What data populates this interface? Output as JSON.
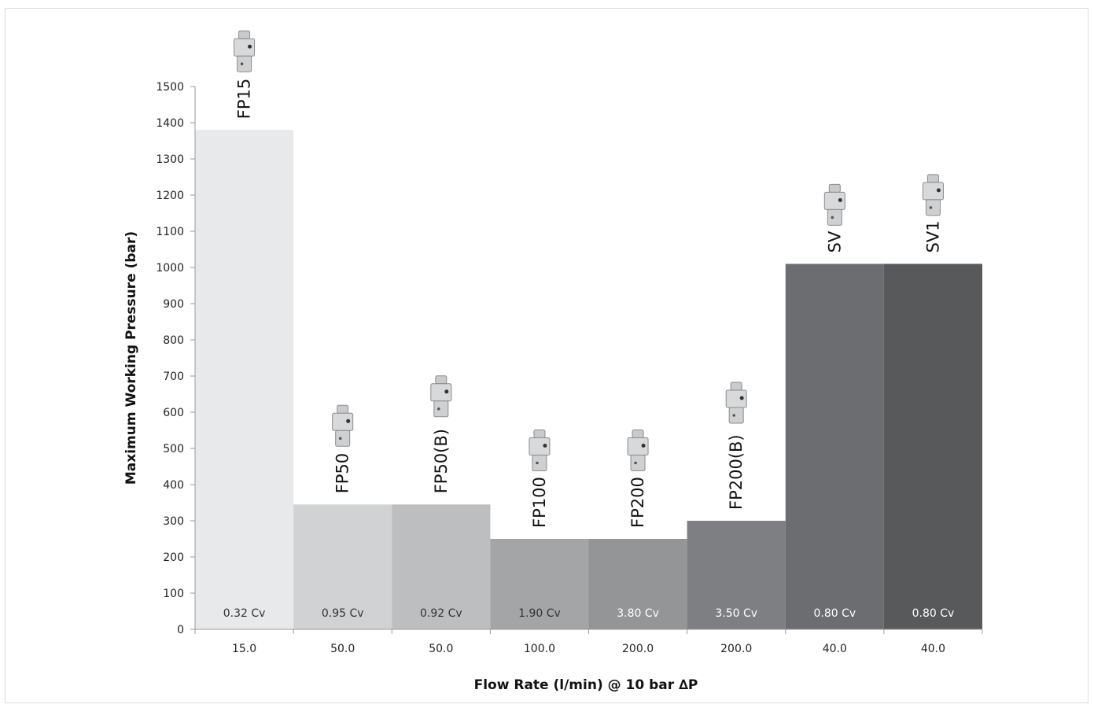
{
  "chart_data": {
    "type": "bar",
    "title": "",
    "xlabel": "Flow Rate (l/min) @ 10 bar ∆P",
    "ylabel": "Maximum Working Pressure (bar)",
    "ylim": [
      0,
      1500
    ],
    "yticks": [
      0,
      100,
      200,
      300,
      400,
      500,
      600,
      700,
      800,
      900,
      1000,
      1100,
      1200,
      1300,
      1400,
      1500
    ],
    "ytick_labels": [
      "0",
      "100",
      "200",
      "300",
      "400",
      "500",
      "600",
      "700",
      "800",
      "900",
      "1000",
      "1100",
      "1200",
      "1300",
      "1400",
      "1500"
    ],
    "grid": false,
    "legend": "none",
    "bars": [
      {
        "name": "FP15",
        "x_label": "15.0",
        "value": 1380,
        "cv": "0.32 Cv",
        "color": "#e8e9ea",
        "cv_color": "#333333",
        "icon": "valve-icon"
      },
      {
        "name": "FP50",
        "x_label": "50.0",
        "value": 345,
        "cv": "0.95 Cv",
        "color": "#d1d2d3",
        "cv_color": "#333333",
        "icon": "valve-icon"
      },
      {
        "name": "FP50(B)",
        "x_label": "50.0",
        "value": 345,
        "cv": "0.92 Cv",
        "color": "#bdbec0",
        "cv_color": "#333333",
        "icon": "valve-icon"
      },
      {
        "name": "FP100",
        "x_label": "100.0",
        "value": 250,
        "cv": "1.90 Cv",
        "color": "#a3a5a7",
        "cv_color": "#333333",
        "icon": "valve-icon"
      },
      {
        "name": "FP200",
        "x_label": "200.0",
        "value": 250,
        "cv": "3.80 Cv",
        "color": "#949597",
        "cv_color": "#ffffff",
        "icon": "valve-icon"
      },
      {
        "name": "FP200(B)",
        "x_label": "200.0",
        "value": 300,
        "cv": "3.50 Cv",
        "color": "#7d7f82",
        "cv_color": "#ffffff",
        "icon": "valve-icon"
      },
      {
        "name": "SV",
        "x_label": "40.0",
        "value": 1010,
        "cv": "0.80 Cv",
        "color": "#6b6d70",
        "cv_color": "#ffffff",
        "icon": "valve-icon"
      },
      {
        "name": "SV1",
        "x_label": "40.0",
        "value": 1010,
        "cv": "0.80 Cv",
        "color": "#58595b",
        "cv_color": "#ffffff",
        "icon": "valve-icon"
      }
    ]
  }
}
